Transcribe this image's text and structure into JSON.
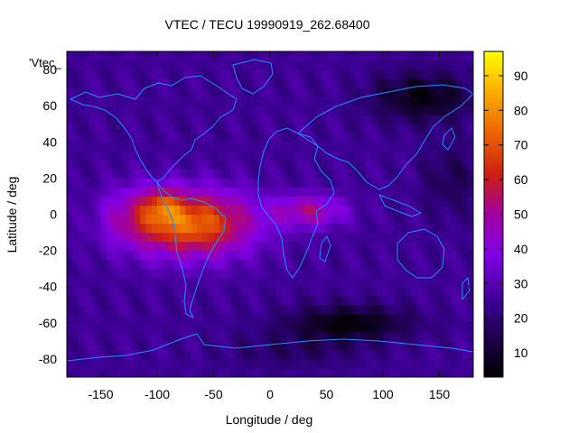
{
  "chart_data": {
    "type": "heatmap",
    "title": "VTEC / TECU 19990919_262.68400",
    "xlabel": "Longitude / deg",
    "ylabel": "Latitude / deg",
    "key_label": "'Vtec_",
    "xlim": [
      -180,
      180
    ],
    "ylim": [
      -90,
      90
    ],
    "xticks": [
      -150,
      -100,
      -50,
      0,
      50,
      100,
      150
    ],
    "yticks": [
      -80,
      -60,
      -40,
      -20,
      0,
      20,
      40,
      60,
      80
    ],
    "colorbar": {
      "range": [
        3,
        97
      ],
      "ticks": [
        10,
        20,
        30,
        40,
        50,
        60,
        70,
        80,
        90
      ],
      "palette": "black-purple-red-orange-yellow"
    },
    "grid": {
      "lon_step": 5,
      "lat_step": 5
    },
    "features": [
      {
        "name": "equatorial-anomaly-peak",
        "lon": -95,
        "lat": 5,
        "value": 95
      },
      {
        "name": "equatorial-band-core",
        "lon": -70,
        "lat": -5,
        "value": 75
      },
      {
        "name": "equatorial-band-east-tail",
        "lon": 35,
        "lat": 2,
        "value": 50
      },
      {
        "name": "southern-trough-minimum",
        "lon": 70,
        "lat": -60,
        "value": 4
      },
      {
        "name": "northern-night-minimum",
        "lon": 135,
        "lat": 65,
        "value": 5
      },
      {
        "name": "background-dayside",
        "value": 25
      }
    ]
  }
}
